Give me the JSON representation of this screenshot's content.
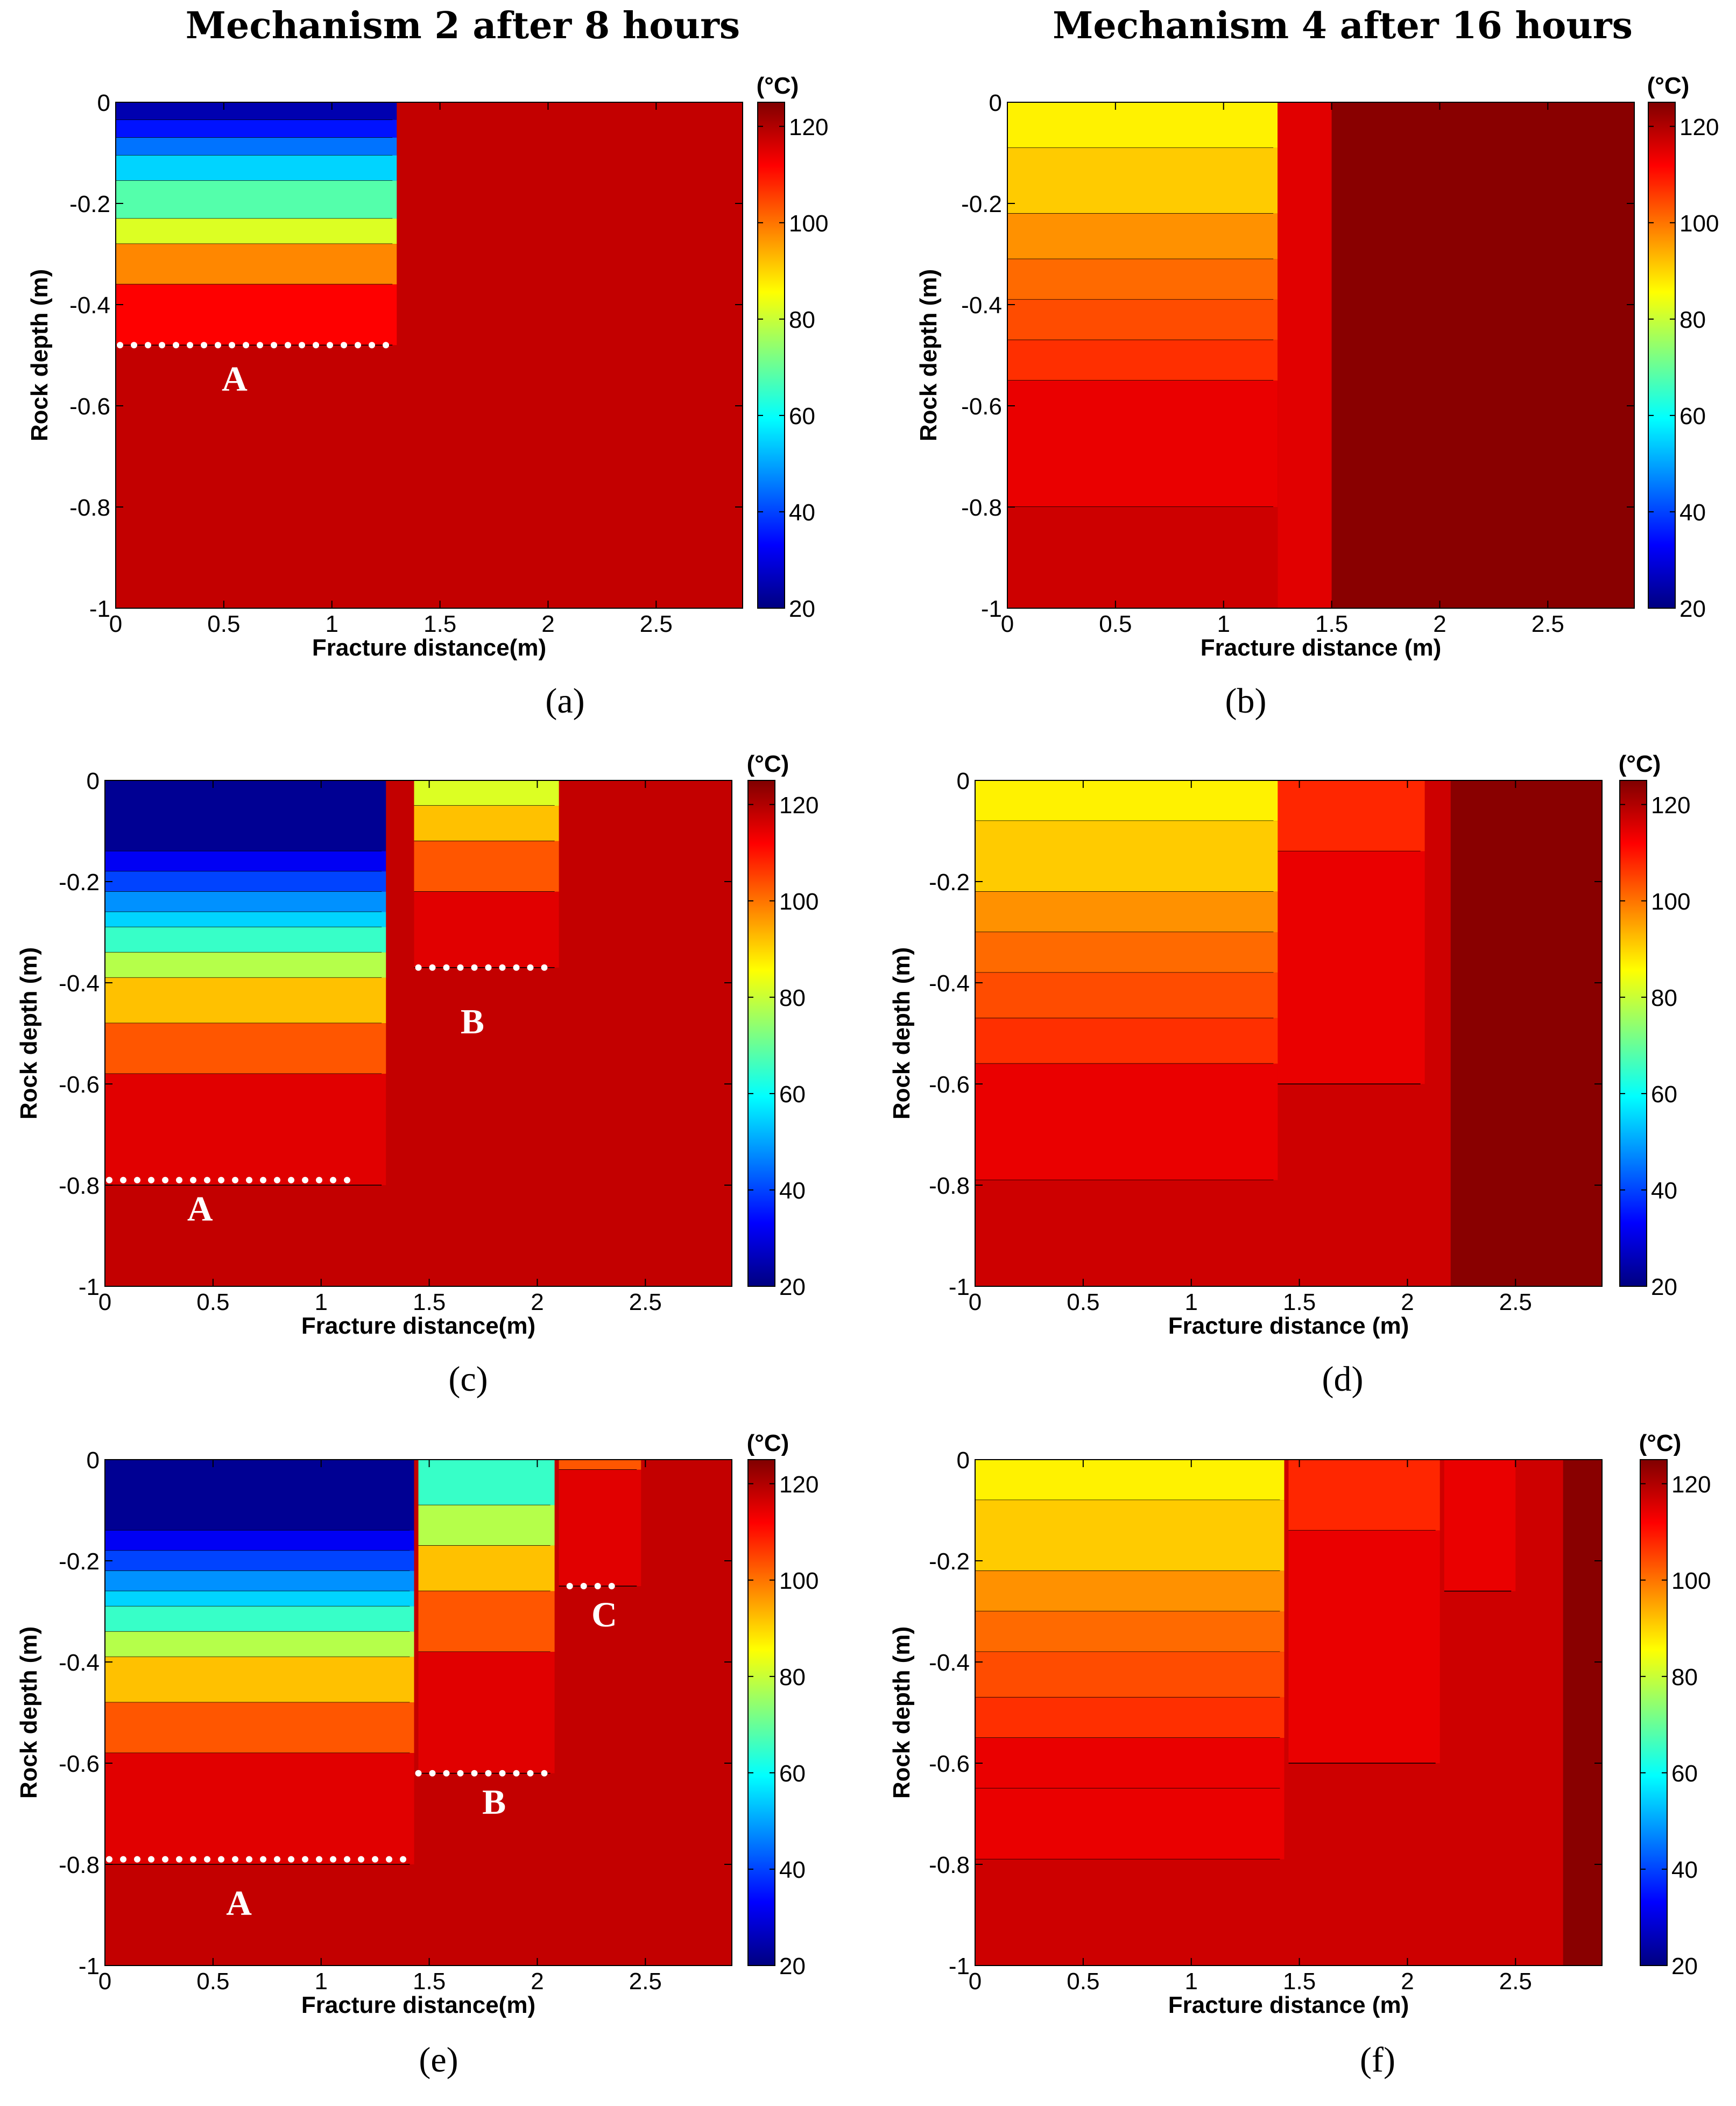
{
  "column_titles": [
    "Mechanism 2 after 8 hours",
    "Mechanism 4 after 16 hours"
  ],
  "chart_data": [
    {
      "type": "heatmap",
      "panel": "(a)",
      "xlabel": "Fracture distance(m)",
      "ylabel": "Rock depth (m)",
      "xlim": [
        0,
        2.9
      ],
      "ylim": [
        -1,
        0
      ],
      "xticks": [
        "0",
        "0.5",
        "1",
        "1.5",
        "2",
        "2.5"
      ],
      "xtick_values": [
        0,
        0.5,
        1,
        1.5,
        2,
        2.5
      ],
      "yticks": [
        "0",
        "-0.2",
        "-0.4",
        "-0.6",
        "-0.8",
        "-1"
      ],
      "ytick_values": [
        0,
        -0.2,
        -0.4,
        -0.6,
        -0.8,
        -1
      ],
      "colorbar_ticks": [
        "120",
        "100",
        "80",
        "60",
        "40",
        "20"
      ],
      "colorbar_tick_values": [
        120,
        100,
        80,
        60,
        40,
        20
      ],
      "colorbar_range": [
        20,
        125
      ],
      "colorbar_unit": "(°C)",
      "background_temp": 118,
      "blocks": [
        {
          "x0": 0,
          "x1": 1.3,
          "bands": [
            [
              0,
              -0.035,
              25
            ],
            [
              -0.035,
              -0.07,
              35
            ],
            [
              -0.07,
              -0.105,
              45
            ],
            [
              -0.105,
              -0.155,
              55
            ],
            [
              -0.155,
              -0.23,
              68
            ],
            [
              -0.23,
              -0.28,
              82
            ],
            [
              -0.28,
              -0.36,
              98
            ],
            [
              -0.36,
              -0.48,
              112
            ]
          ]
        }
      ],
      "markers": [
        {
          "label": "A",
          "depth": -0.48,
          "x0": 0.02,
          "x1": 1.3,
          "label_x": 0.55,
          "label_y": -0.57
        }
      ]
    },
    {
      "type": "heatmap",
      "panel": "(b)",
      "xlabel": "Fracture distance (m)",
      "ylabel": "Rock depth (m)",
      "xlim": [
        0,
        2.9
      ],
      "ylim": [
        -1,
        0
      ],
      "xticks": [
        "0",
        "0.5",
        "1",
        "1.5",
        "2",
        "2.5"
      ],
      "xtick_values": [
        0,
        0.5,
        1,
        1.5,
        2,
        2.5
      ],
      "yticks": [
        "0",
        "-0.2",
        "-0.4",
        "-0.6",
        "-0.8",
        "-1"
      ],
      "ytick_values": [
        0,
        -0.2,
        -0.4,
        -0.6,
        -0.8,
        -1
      ],
      "colorbar_ticks": [
        "120",
        "100",
        "80",
        "60",
        "40",
        "20"
      ],
      "colorbar_tick_values": [
        120,
        100,
        80,
        60,
        40,
        20
      ],
      "colorbar_range": [
        20,
        125
      ],
      "colorbar_unit": "(°C)",
      "background_temp": 124,
      "blocks": [
        {
          "x0": 0,
          "x1": 1.25,
          "bands": [
            [
              0,
              -0.09,
              87
            ],
            [
              -0.09,
              -0.22,
              91
            ],
            [
              -0.22,
              -0.31,
              97
            ],
            [
              -0.31,
              -0.39,
              101
            ],
            [
              -0.39,
              -0.47,
              104
            ],
            [
              -0.47,
              -0.55,
              107
            ],
            [
              -0.55,
              -0.8,
              114
            ],
            [
              -0.8,
              -1.0,
              117
            ]
          ]
        },
        {
          "x0": 1.25,
          "x1": 1.5,
          "bands": [
            [
              0,
              -1.0,
              115
            ]
          ]
        }
      ],
      "markers": []
    },
    {
      "type": "heatmap",
      "panel": "(c)",
      "xlabel": "Fracture distance(m)",
      "ylabel": "Rock depth (m)",
      "xlim": [
        0,
        2.9
      ],
      "ylim": [
        -1,
        0
      ],
      "xticks": [
        "0",
        "0.5",
        "1",
        "1.5",
        "2",
        "2.5"
      ],
      "xtick_values": [
        0,
        0.5,
        1,
        1.5,
        2,
        2.5
      ],
      "yticks": [
        "0",
        "-0.2",
        "-0.4",
        "-0.6",
        "-0.8",
        "-1"
      ],
      "ytick_values": [
        0,
        -0.2,
        -0.4,
        -0.6,
        -0.8,
        -1
      ],
      "colorbar_ticks": [
        "120",
        "100",
        "80",
        "60",
        "40",
        "20"
      ],
      "colorbar_tick_values": [
        120,
        100,
        80,
        60,
        40,
        20
      ],
      "colorbar_range": [
        20,
        125
      ],
      "colorbar_unit": "(°C)",
      "background_temp": 118,
      "blocks": [
        {
          "x0": 0,
          "x1": 1.3,
          "bands": [
            [
              0,
              -0.14,
              22
            ],
            [
              -0.14,
              -0.18,
              32
            ],
            [
              -0.18,
              -0.22,
              40
            ],
            [
              -0.22,
              -0.26,
              48
            ],
            [
              -0.26,
              -0.29,
              55
            ],
            [
              -0.29,
              -0.34,
              65
            ],
            [
              -0.34,
              -0.39,
              78
            ],
            [
              -0.39,
              -0.48,
              92
            ],
            [
              -0.48,
              -0.58,
              103
            ],
            [
              -0.58,
              -0.8,
              115
            ]
          ]
        },
        {
          "x0": 1.43,
          "x1": 2.1,
          "bands": [
            [
              0,
              -0.05,
              82
            ],
            [
              -0.05,
              -0.12,
              92
            ],
            [
              -0.12,
              -0.22,
              103
            ],
            [
              -0.22,
              -0.37,
              115
            ]
          ]
        }
      ],
      "markers": [
        {
          "label": "A",
          "depth": -0.79,
          "x0": 0.02,
          "x1": 1.18,
          "label_x": 0.44,
          "label_y": -0.87
        },
        {
          "label": "B",
          "depth": -0.37,
          "x0": 1.45,
          "x1": 2.05,
          "label_x": 1.7,
          "label_y": -0.5
        }
      ]
    },
    {
      "type": "heatmap",
      "panel": "(d)",
      "xlabel": "Fracture distance (m)",
      "ylabel": "Rock depth (m)",
      "xlim": [
        0,
        2.9
      ],
      "ylim": [
        -1,
        0
      ],
      "xticks": [
        "0",
        "0.5",
        "1",
        "1.5",
        "2",
        "2.5"
      ],
      "xtick_values": [
        0,
        0.5,
        1,
        1.5,
        2,
        2.5
      ],
      "yticks": [
        "0",
        "-0.2",
        "-0.4",
        "-0.6",
        "-0.8",
        "-1"
      ],
      "ytick_values": [
        0,
        -0.2,
        -0.4,
        -0.6,
        -0.8,
        -1
      ],
      "colorbar_ticks": [
        "120",
        "100",
        "80",
        "60",
        "40",
        "20"
      ],
      "colorbar_tick_values": [
        120,
        100,
        80,
        60,
        40,
        20
      ],
      "colorbar_range": [
        20,
        125
      ],
      "colorbar_unit": "(°C)",
      "background_temp": 124,
      "blocks": [
        {
          "x0": 0,
          "x1": 2.2,
          "bands": [
            [
              0,
              -1.0,
              117
            ]
          ]
        },
        {
          "x0": 0,
          "x1": 1.4,
          "bands": [
            [
              0,
              -0.08,
              87
            ],
            [
              -0.08,
              -0.22,
              91
            ],
            [
              -0.22,
              -0.3,
              97
            ],
            [
              -0.3,
              -0.38,
              101
            ],
            [
              -0.38,
              -0.47,
              104
            ],
            [
              -0.47,
              -0.56,
              107
            ],
            [
              -0.56,
              -0.79,
              114
            ],
            [
              -0.79,
              -1.0,
              117
            ]
          ]
        },
        {
          "x0": 1.4,
          "x1": 2.08,
          "bands": [
            [
              0,
              -0.14,
              108
            ],
            [
              -0.14,
              -0.6,
              114
            ]
          ]
        }
      ],
      "markers": []
    },
    {
      "type": "heatmap",
      "panel": "(e)",
      "xlabel": "Fracture distance(m)",
      "ylabel": "Rock depth (m)",
      "xlim": [
        0,
        2.9
      ],
      "ylim": [
        -1,
        0
      ],
      "xticks": [
        "0",
        "0.5",
        "1",
        "1.5",
        "2",
        "2.5"
      ],
      "xtick_values": [
        0,
        0.5,
        1,
        1.5,
        2,
        2.5
      ],
      "yticks": [
        "0",
        "-0.2",
        "-0.4",
        "-0.6",
        "-0.8",
        "-1"
      ],
      "ytick_values": [
        0,
        -0.2,
        -0.4,
        -0.6,
        -0.8,
        -1
      ],
      "colorbar_ticks": [
        "120",
        "100",
        "80",
        "60",
        "40",
        "20"
      ],
      "colorbar_tick_values": [
        120,
        100,
        80,
        60,
        40,
        20
      ],
      "colorbar_range": [
        20,
        125
      ],
      "colorbar_unit": "(°C)",
      "background_temp": 118,
      "blocks": [
        {
          "x0": 0,
          "x1": 1.43,
          "bands": [
            [
              0,
              -0.14,
              22
            ],
            [
              -0.14,
              -0.18,
              32
            ],
            [
              -0.18,
              -0.22,
              40
            ],
            [
              -0.22,
              -0.26,
              48
            ],
            [
              -0.26,
              -0.29,
              55
            ],
            [
              -0.29,
              -0.34,
              65
            ],
            [
              -0.34,
              -0.39,
              78
            ],
            [
              -0.39,
              -0.48,
              92
            ],
            [
              -0.48,
              -0.58,
              103
            ],
            [
              -0.58,
              -0.8,
              115
            ]
          ]
        },
        {
          "x0": 1.45,
          "x1": 2.08,
          "bands": [
            [
              0,
              -0.09,
              65
            ],
            [
              -0.09,
              -0.17,
              78
            ],
            [
              -0.17,
              -0.26,
              92
            ],
            [
              -0.26,
              -0.38,
              103
            ],
            [
              -0.38,
              -0.62,
              115
            ]
          ]
        },
        {
          "x0": 2.1,
          "x1": 2.48,
          "bands": [
            [
              0,
              -0.02,
              103
            ],
            [
              -0.02,
              -0.25,
              115
            ]
          ]
        }
      ],
      "markers": [
        {
          "label": "A",
          "depth": -0.79,
          "x0": 0.02,
          "x1": 1.38,
          "label_x": 0.62,
          "label_y": -0.9
        },
        {
          "label": "B",
          "depth": -0.62,
          "x0": 1.45,
          "x1": 2.08,
          "label_x": 1.8,
          "label_y": -0.7
        },
        {
          "label": "C",
          "depth": -0.25,
          "x0": 2.15,
          "x1": 2.4,
          "label_x": 2.31,
          "label_y": -0.33
        }
      ]
    },
    {
      "type": "heatmap",
      "panel": "(f)",
      "xlabel": "Fracture distance (m)",
      "ylabel": "Rock depth (m)",
      "xlim": [
        0,
        2.9
      ],
      "ylim": [
        -1,
        0
      ],
      "xticks": [
        "0",
        "0.5",
        "1",
        "1.5",
        "2",
        "2.5"
      ],
      "xtick_values": [
        0,
        0.5,
        1,
        1.5,
        2,
        2.5
      ],
      "yticks": [
        "0",
        "-0.2",
        "-0.4",
        "-0.6",
        "-0.8",
        "-1"
      ],
      "ytick_values": [
        0,
        -0.2,
        -0.4,
        -0.6,
        -0.8,
        -1
      ],
      "colorbar_ticks": [
        "120",
        "100",
        "80",
        "60",
        "40",
        "20"
      ],
      "colorbar_tick_values": [
        120,
        100,
        80,
        60,
        40,
        20
      ],
      "colorbar_range": [
        20,
        125
      ],
      "colorbar_unit": "(°C)",
      "background_temp": 124,
      "blocks": [
        {
          "x0": 0,
          "x1": 2.72,
          "bands": [
            [
              0,
              -1.0,
              117
            ]
          ]
        },
        {
          "x0": 0,
          "x1": 1.43,
          "bands": [
            [
              0,
              -0.08,
              87
            ],
            [
              -0.08,
              -0.22,
              91
            ],
            [
              -0.22,
              -0.3,
              97
            ],
            [
              -0.3,
              -0.38,
              101
            ],
            [
              -0.38,
              -0.47,
              104
            ],
            [
              -0.47,
              -0.55,
              107
            ],
            [
              -0.55,
              -0.65,
              114
            ],
            [
              -0.65,
              -0.79,
              114
            ],
            [
              -0.79,
              -1.0,
              117
            ]
          ]
        },
        {
          "x0": 1.45,
          "x1": 2.15,
          "bands": [
            [
              0,
              -0.14,
              108
            ],
            [
              -0.14,
              -0.6,
              114
            ]
          ]
        },
        {
          "x0": 2.17,
          "x1": 2.5,
          "bands": [
            [
              0,
              -0.26,
              114
            ]
          ]
        }
      ],
      "markers": []
    }
  ]
}
